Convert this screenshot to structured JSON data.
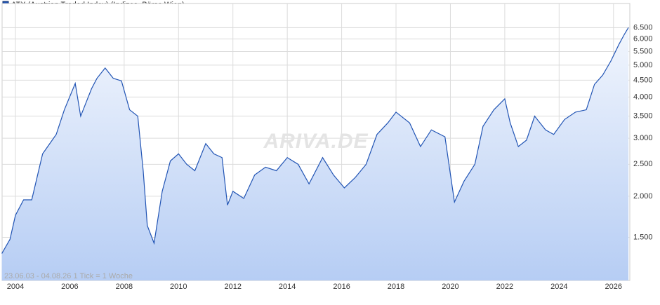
{
  "chart_data": {
    "type": "area",
    "title": "ATX (Austrian Traded Index) (Indizes, Börse Wien)",
    "watermark": "ARIVA.DE",
    "footnote": "23.06.03 - 04.08.26   1 Tick = 1 Woche",
    "log_scale": true,
    "grid": true,
    "xlim": [
      2003.51,
      2026.6
    ],
    "ylim": [
      1110,
      7360
    ],
    "xticks": [
      2004,
      2006,
      2008,
      2010,
      2012,
      2014,
      2016,
      2018,
      2020,
      2022,
      2024,
      2026
    ],
    "yticks": [
      {
        "value": 1500,
        "label": "1.500"
      },
      {
        "value": 2000,
        "label": "2.000"
      },
      {
        "value": 2500,
        "label": "2.500"
      },
      {
        "value": 3000,
        "label": "3.000"
      },
      {
        "value": 3500,
        "label": "3.500"
      },
      {
        "value": 4000,
        "label": "4.000"
      },
      {
        "value": 4500,
        "label": "4.500"
      },
      {
        "value": 5000,
        "label": "5.000"
      },
      {
        "value": 5500,
        "label": "5.500"
      },
      {
        "value": 6000,
        "label": "6.000"
      },
      {
        "value": 6500,
        "label": "6.500"
      }
    ],
    "x": [
      2003.5,
      2003.8,
      2004.0,
      2004.3,
      2004.6,
      2005.0,
      2005.5,
      2005.8,
      2006.2,
      2006.4,
      2006.8,
      2007.0,
      2007.3,
      2007.6,
      2007.9,
      2008.2,
      2008.5,
      2008.7,
      2008.85,
      2009.1,
      2009.4,
      2009.7,
      2010.0,
      2010.3,
      2010.6,
      2011.0,
      2011.3,
      2011.6,
      2011.8,
      2012.0,
      2012.4,
      2012.8,
      2013.2,
      2013.6,
      2014.0,
      2014.4,
      2014.8,
      2015.3,
      2015.7,
      2016.1,
      2016.5,
      2016.9,
      2017.3,
      2017.7,
      2018.0,
      2018.5,
      2018.9,
      2019.3,
      2019.8,
      2020.15,
      2020.5,
      2020.9,
      2021.2,
      2021.6,
      2022.0,
      2022.2,
      2022.5,
      2022.8,
      2023.1,
      2023.5,
      2023.8,
      2024.2,
      2024.6,
      2025.0,
      2025.3,
      2025.6,
      2025.9,
      2026.2,
      2026.4,
      2026.55
    ],
    "series": [
      {
        "name": "ATX (Austrian Traded Index) (Indizes, Börse Wien)",
        "color": "#2154b4",
        "values": [
          1340,
          1480,
          1750,
          1950,
          1950,
          2690,
          3080,
          3660,
          4400,
          3500,
          4240,
          4560,
          4900,
          4560,
          4480,
          3660,
          3500,
          2390,
          1630,
          1440,
          2070,
          2560,
          2690,
          2500,
          2390,
          2890,
          2690,
          2620,
          1880,
          2070,
          1970,
          2320,
          2450,
          2390,
          2620,
          2500,
          2180,
          2620,
          2320,
          2120,
          2280,
          2500,
          3080,
          3340,
          3600,
          3340,
          2830,
          3180,
          3030,
          1920,
          2220,
          2500,
          3260,
          3660,
          3950,
          3340,
          2830,
          2960,
          3500,
          3180,
          3080,
          3420,
          3600,
          3660,
          4370,
          4660,
          5140,
          5780,
          6200,
          6500
        ]
      }
    ]
  }
}
